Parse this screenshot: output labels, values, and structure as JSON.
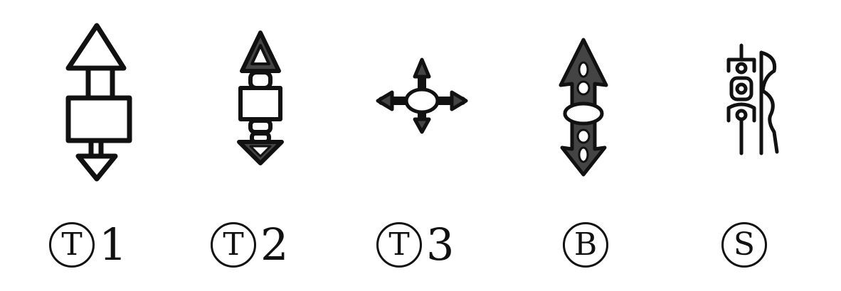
{
  "items": [
    {
      "letter": "T",
      "number": "1"
    },
    {
      "letter": "T",
      "number": "2"
    },
    {
      "letter": "T",
      "number": "3"
    },
    {
      "letter": "B",
      "number": ""
    },
    {
      "letter": "S",
      "number": ""
    }
  ],
  "colors": {
    "ink": "#111111",
    "fill": "#444444",
    "background": "#ffffff"
  }
}
